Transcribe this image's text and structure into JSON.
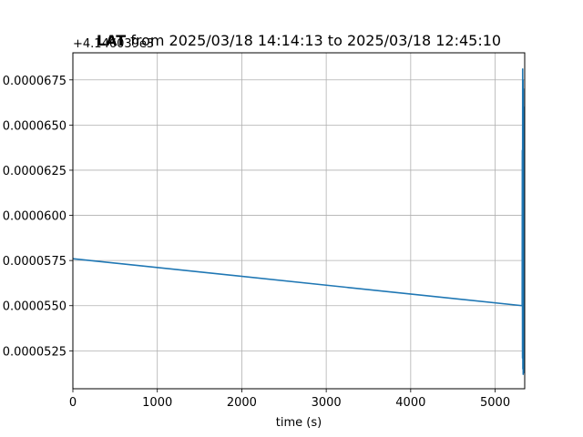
{
  "chart_data": {
    "type": "line",
    "title_bold": "LAT",
    "title_rest": " from 2025/03/18 14:14:13 to 2025/03/18 12:45:10",
    "xlabel": "time (s)",
    "ylabel": "",
    "offset_text": "+4.146039e3",
    "xlim": [
      0,
      5350
    ],
    "ylim": [
      5.04e-05,
      6.9e-05
    ],
    "grid": true,
    "xticks": [
      0,
      1000,
      2000,
      3000,
      4000,
      5000
    ],
    "xtick_labels": [
      "0",
      "1000",
      "2000",
      "3000",
      "4000",
      "5000"
    ],
    "yticks": [
      5.25e-05,
      5.5e-05,
      5.75e-05,
      6e-05,
      6.25e-05,
      6.5e-05,
      6.75e-05
    ],
    "ytick_labels": [
      "0.0000525",
      "0.0000550",
      "0.0000575",
      "0.0000600",
      "0.0000625",
      "0.0000650",
      "0.0000675"
    ],
    "series": [
      {
        "color": "#1f77b4",
        "x": [
          0,
          5320,
          5322,
          5324,
          5326,
          5328,
          5330,
          5332,
          5334,
          5336,
          5338,
          5340,
          5342
        ],
        "y": [
          5.76e-05,
          5.5e-05,
          6.36e-05,
          5.21e-05,
          6.81e-05,
          5.15e-05,
          6.75e-05,
          5.12e-05,
          6.7e-05,
          5.16e-05,
          6.6e-05,
          5.13e-05,
          5.4e-05
        ]
      }
    ]
  }
}
